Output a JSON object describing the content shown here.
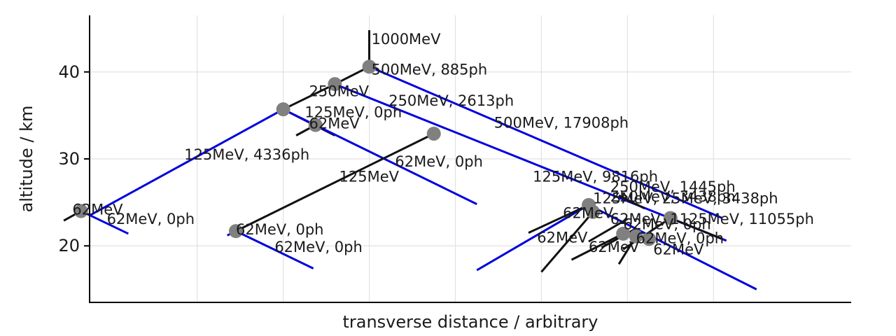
{
  "chart_data": {
    "type": "line",
    "title": "",
    "xlabel": "transverse distance / arbitrary",
    "ylabel": "altitude / km",
    "xlim": [
      -6.5,
      11.2
    ],
    "ylim": [
      13.5,
      46.5
    ],
    "yticks": [
      20,
      30,
      40
    ],
    "xtick_values": [
      -4,
      -2,
      0,
      2,
      4,
      6,
      8
    ],
    "grid": true,
    "colors": {
      "electron": "#0000dd",
      "photon": "#111111",
      "vertex": "#808080",
      "grid": "#e2e2e2"
    },
    "series": [
      {
        "kind": "photon",
        "x": [
          0.0,
          0.0
        ],
        "y": [
          44.8,
          40.6
        ]
      },
      {
        "kind": "electron",
        "x": [
          0.0,
          8.2
        ],
        "y": [
          40.6,
          23.2
        ]
      },
      {
        "kind": "photon",
        "x": [
          0.0,
          -0.8
        ],
        "y": [
          40.6,
          38.6
        ]
      },
      {
        "kind": "photon",
        "x": [
          -0.8,
          -2.0
        ],
        "y": [
          38.6,
          35.7
        ]
      },
      {
        "kind": "electron",
        "x": [
          -0.8,
          8.3
        ],
        "y": [
          38.6,
          20.6
        ]
      },
      {
        "kind": "electron",
        "x": [
          -2.0,
          -6.5
        ],
        "y": [
          35.7,
          23.5
        ]
      },
      {
        "kind": "photon",
        "x": [
          -2.0,
          -0.8
        ],
        "y": [
          35.7,
          32.7
        ]
      },
      {
        "kind": "photon",
        "x": [
          -1.25,
          -1.7
        ],
        "y": [
          33.9,
          32.7
        ]
      },
      {
        "kind": "electron",
        "x": [
          -2.0,
          2.5
        ],
        "y": [
          35.7,
          24.8
        ]
      },
      {
        "kind": "photon",
        "x": [
          1.5,
          -3.1
        ],
        "y": [
          32.9,
          21.7
        ]
      },
      {
        "kind": "electron",
        "x": [
          -3.1,
          -1.3
        ],
        "y": [
          21.7,
          17.4
        ]
      },
      {
        "kind": "photon",
        "x": [
          -6.7,
          -7.1
        ],
        "y": [
          24.0,
          22.9
        ]
      },
      {
        "kind": "electron",
        "x": [
          -6.7,
          -5.6
        ],
        "y": [
          24.0,
          21.4
        ]
      },
      {
        "kind": "electron",
        "x": [
          -3.1,
          -3.3
        ],
        "y": [
          21.7,
          21.2
        ]
      },
      {
        "kind": "electron",
        "x": [
          5.1,
          2.5
        ],
        "y": [
          24.7,
          17.2
        ]
      },
      {
        "kind": "electron",
        "x": [
          5.1,
          9.0
        ],
        "y": [
          24.7,
          15.0
        ]
      },
      {
        "kind": "photon",
        "x": [
          5.1,
          3.7
        ],
        "y": [
          24.7,
          21.5
        ]
      },
      {
        "kind": "photon",
        "x": [
          5.2,
          4.0
        ],
        "y": [
          23.9,
          17.0
        ]
      },
      {
        "kind": "photon",
        "x": [
          5.9,
          4.7
        ],
        "y": [
          21.4,
          18.4
        ]
      },
      {
        "kind": "photon",
        "x": [
          6.2,
          5.8
        ],
        "y": [
          21.1,
          17.9
        ]
      },
      {
        "kind": "photon",
        "x": [
          7.0,
          5.9
        ],
        "y": [
          23.2,
          19.6
        ]
      },
      {
        "kind": "photon",
        "x": [
          7.0,
          8.2
        ],
        "y": [
          23.2,
          20.8
        ]
      },
      {
        "kind": "photon",
        "x": [
          5.8,
          6.4
        ],
        "y": [
          25.8,
          24.3
        ]
      },
      {
        "kind": "photon",
        "x": [
          6.0,
          5.1
        ],
        "y": [
          23.1,
          20.5
        ]
      },
      {
        "kind": "photon",
        "x": [
          6.2,
          5.4
        ],
        "y": [
          22.0,
          19.8
        ]
      }
    ],
    "vertices": [
      {
        "x": 0.0,
        "y": 40.6
      },
      {
        "x": -0.8,
        "y": 38.6
      },
      {
        "x": -2.0,
        "y": 35.7
      },
      {
        "x": -1.25,
        "y": 33.9
      },
      {
        "x": 1.5,
        "y": 32.9
      },
      {
        "x": -6.7,
        "y": 24.0
      },
      {
        "x": -3.1,
        "y": 21.7
      },
      {
        "x": 5.1,
        "y": 24.7
      },
      {
        "x": 5.2,
        "y": 23.9
      },
      {
        "x": 7.0,
        "y": 23.2
      },
      {
        "x": 5.9,
        "y": 21.4
      },
      {
        "x": 6.2,
        "y": 21.1
      },
      {
        "x": 6.5,
        "y": 20.8
      }
    ],
    "annotations": [
      {
        "text": "1000MeV",
        "x": 0.05,
        "y": 43.2
      },
      {
        "text": "500MeV, 885ph",
        "x": 0.05,
        "y": 39.7
      },
      {
        "text": "250MeV",
        "x": -1.4,
        "y": 37.2
      },
      {
        "text": "250MeV, 2613ph",
        "x": 0.45,
        "y": 36.1
      },
      {
        "text": "125MeV, 0ph",
        "x": -1.5,
        "y": 34.8
      },
      {
        "text": "62MeV",
        "x": -1.4,
        "y": 33.5
      },
      {
        "text": "500MeV, 17908ph",
        "x": 2.9,
        "y": 33.6
      },
      {
        "text": "125MeV, 4336ph",
        "x": -4.3,
        "y": 29.9
      },
      {
        "text": "62MeV, 0ph",
        "x": 0.6,
        "y": 29.1
      },
      {
        "text": "125MeV",
        "x": -0.7,
        "y": 27.4
      },
      {
        "text": "125MeV, 9816ph",
        "x": 3.8,
        "y": 27.4
      },
      {
        "text": "250MeV, 1445ph",
        "x": 5.6,
        "y": 26.2
      },
      {
        "text": "250MeV, 3438ph",
        "x": 5.6,
        "y": 25.1
      },
      {
        "text": "125MeV, 25MeV, 3438ph",
        "x": 5.2,
        "y": 24.9
      },
      {
        "text": "62MeV",
        "x": -6.9,
        "y": 23.6
      },
      {
        "text": "62MeV, 0ph",
        "x": -6.1,
        "y": 22.5
      },
      {
        "text": "62MeV",
        "x": 4.5,
        "y": 23.2
      },
      {
        "text": "62MeV, 1125MeV, 11055ph",
        "x": 5.6,
        "y": 22.5
      },
      {
        "text": "62MeV, 0ph",
        "x": 5.9,
        "y": 21.9
      },
      {
        "text": "62MeV, 0ph",
        "x": -3.1,
        "y": 21.3
      },
      {
        "text": "62MeV",
        "x": 3.9,
        "y": 20.4
      },
      {
        "text": "62MeV, 0ph",
        "x": 6.2,
        "y": 20.3
      },
      {
        "text": "62MeV, 0ph",
        "x": -2.2,
        "y": 19.3
      },
      {
        "text": "62MeV",
        "x": 5.1,
        "y": 19.3
      },
      {
        "text": "62MeV",
        "x": 6.6,
        "y": 19.0
      }
    ]
  }
}
